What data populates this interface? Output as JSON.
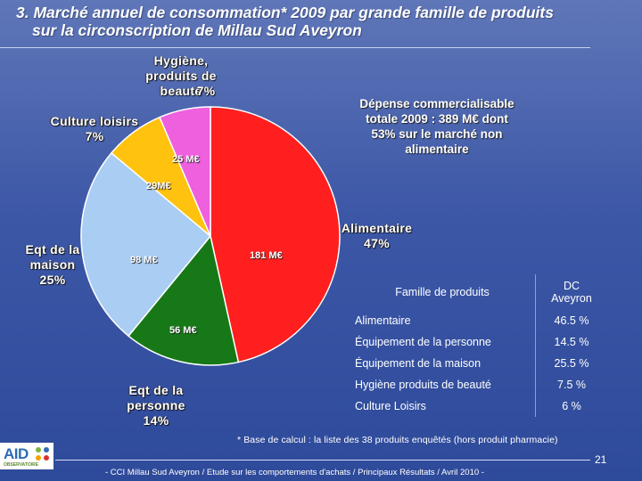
{
  "header": {
    "title_line1": "3. Marché annuel de consommation* 2009 par grande famille de produits",
    "title_line2": "sur la circonscription de Millau Sud Aveyron"
  },
  "chart_data": {
    "type": "pie",
    "title": "Marché annuel de consommation* 2009 par grande famille de produits",
    "start_angle_deg": 0,
    "direction": "clockwise",
    "slices": [
      {
        "label": "Alimentaire",
        "name_lines": [
          "Alimentaire"
        ],
        "percent_label": "47%",
        "value": 181,
        "value_label": "181 M€",
        "color": "#ff1f1f"
      },
      {
        "label": "Eqt de la personne",
        "name_lines": [
          "Eqt de la",
          "personne"
        ],
        "percent_label": "14%",
        "value": 56,
        "value_label": "56 M€",
        "color": "#177817"
      },
      {
        "label": "Eqt de la maison",
        "name_lines": [
          "Eqt de la",
          "maison"
        ],
        "percent_label": "25%",
        "value": 98,
        "value_label": "98 M€",
        "color": "#a9cdf3"
      },
      {
        "label": "Culture loisirs",
        "name_lines": [
          "Culture loisirs"
        ],
        "percent_label": "7%",
        "value": 29,
        "value_label": "29M€",
        "color": "#ffc20e"
      },
      {
        "label": "Hygiène, produits de beauté",
        "name_lines": [
          "Hygiène,",
          "produits de",
          "beauté"
        ],
        "percent_label": "7%",
        "value": 25,
        "value_label": "25 M€",
        "color": "#ee60de"
      }
    ]
  },
  "note": {
    "lines": [
      "Dépense commercialisable",
      "totale 2009 : 389 M€ dont",
      "53% sur le marché non",
      "alimentaire"
    ]
  },
  "table": {
    "header_family": "Famille de produits",
    "header_zone_line1": "DC",
    "header_zone_line2": "Aveyron",
    "rows": [
      {
        "family": "Alimentaire",
        "pct": "46.5 %"
      },
      {
        "family": "Équipement de la personne",
        "pct": "14.5 %"
      },
      {
        "family": "Équipement de la maison",
        "pct": "25.5 %"
      },
      {
        "family": "Hygiène produits de beauté",
        "pct": "7.5 %"
      },
      {
        "family": "Culture Loisirs",
        "pct": "6 %"
      }
    ]
  },
  "footnote": "* Base de calcul : la liste des 38 produits enquêtés (hors produit pharmacie)",
  "page_number": "21",
  "source": "- CCI Millau Sud Aveyron /  Etude sur les comportements d'achats / Principaux Résultats / Avril 2010 -",
  "logo": {
    "text": "AID",
    "subtext": "OBSERVATOIRE",
    "dot_colors": [
      "#7cb342",
      "#2e6bb5",
      "#f4a300",
      "#d9322f"
    ]
  }
}
